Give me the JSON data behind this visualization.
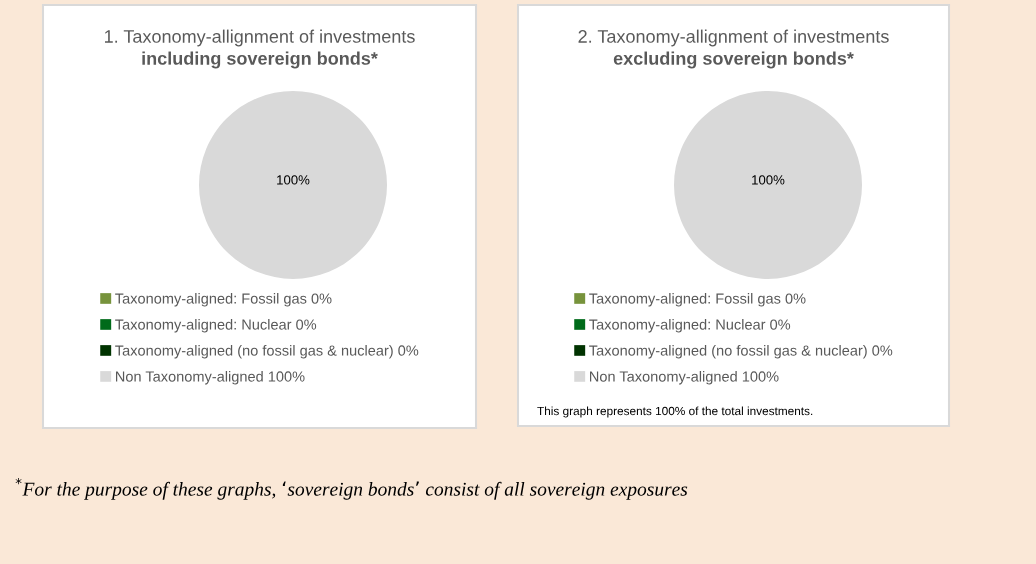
{
  "chart_data": [
    {
      "type": "pie",
      "title": "1. Taxonomy-allignment of investments",
      "subtitle": "including sovereign bonds*",
      "categories": [
        "Taxonomy-aligned: Fossil gas 0%",
        "Taxonomy-aligned: Nuclear 0%",
        "Taxonomy-aligned (no fossil gas & nuclear) 0%",
        "Non Taxonomy-aligned 100%"
      ],
      "values": [
        0,
        0,
        0,
        100
      ],
      "colors": [
        "#77933c",
        "#006b1a",
        "#003300",
        "#d9d9d9"
      ],
      "value_labels": [
        null,
        null,
        null,
        "100%"
      ],
      "legend": "bottom"
    },
    {
      "type": "pie",
      "title": "2. Taxonomy-allignment of investments",
      "subtitle": "excluding sovereign bonds*",
      "categories": [
        "Taxonomy-aligned: Fossil gas 0%",
        "Taxonomy-aligned: Nuclear 0%",
        "Taxonomy-aligned (no fossil gas & nuclear) 0%",
        "Non Taxonomy-aligned 100%"
      ],
      "values": [
        0,
        0,
        0,
        100
      ],
      "colors": [
        "#77933c",
        "#006b1a",
        "#003300",
        "#d9d9d9"
      ],
      "value_labels": [
        null,
        null,
        null,
        "100%"
      ],
      "legend": "bottom",
      "annotations": [
        "This graph represents 100% of the total investments.",
        "$^{*}$For the purpose of these graphs, ‘sovereign bonds’ consist of all sovereign exposures"
      ]
    }
  ]
}
